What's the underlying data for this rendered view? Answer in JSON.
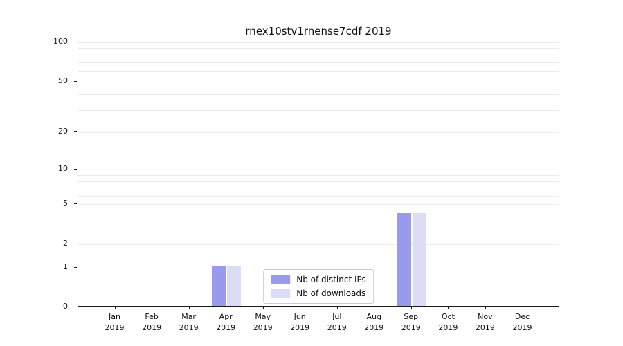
{
  "chart_data": {
    "type": "bar",
    "title": "rnex10stv1rnense7cdf 2019",
    "yscale": "log1p",
    "ylim": [
      0,
      100
    ],
    "yticks": [
      0,
      1,
      2,
      5,
      10,
      20,
      50,
      100
    ],
    "gridline_values": [
      1,
      2,
      3,
      4,
      5,
      6,
      7,
      8,
      9,
      10,
      20,
      30,
      40,
      50,
      60,
      70,
      80,
      90,
      100
    ],
    "grid": true,
    "legend_position": "lower center",
    "categories": [
      {
        "month": "Jan",
        "year": "2019"
      },
      {
        "month": "Feb",
        "year": "2019"
      },
      {
        "month": "Mar",
        "year": "2019"
      },
      {
        "month": "Apr",
        "year": "2019"
      },
      {
        "month": "May",
        "year": "2019"
      },
      {
        "month": "Jun",
        "year": "2019"
      },
      {
        "month": "Jul",
        "year": "2019"
      },
      {
        "month": "Aug",
        "year": "2019"
      },
      {
        "month": "Sep",
        "year": "2019"
      },
      {
        "month": "Oct",
        "year": "2019"
      },
      {
        "month": "Nov",
        "year": "2019"
      },
      {
        "month": "Dec",
        "year": "2019"
      }
    ],
    "series": [
      {
        "name": "Nb of distinct IPs",
        "color": "#9999ee",
        "values": [
          0,
          0,
          0,
          1,
          0,
          0,
          0,
          0,
          4,
          0,
          0,
          0
        ]
      },
      {
        "name": "Nb of downloads",
        "color": "#dcdcf8",
        "values": [
          0,
          0,
          0,
          1,
          0,
          0,
          0,
          0,
          4,
          0,
          0,
          0
        ]
      }
    ]
  }
}
